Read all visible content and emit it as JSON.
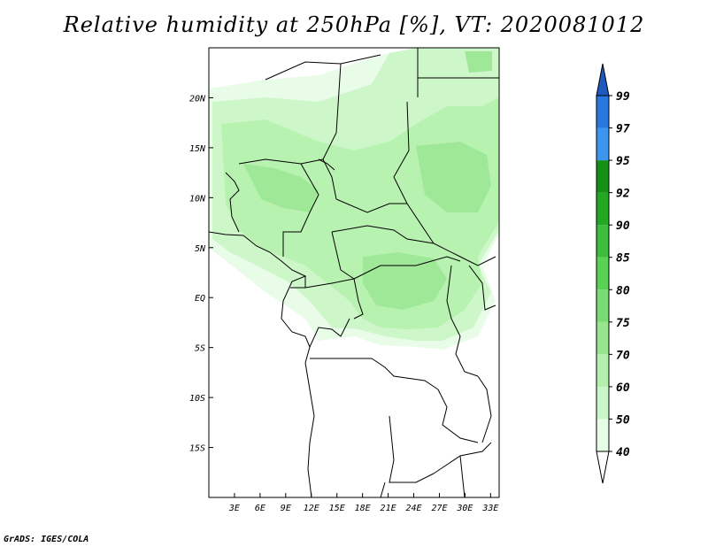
{
  "title": "Relative humidity at 250hPa [%], VT: 2020081012",
  "credit": "GrADS: IGES/COLA",
  "map": {
    "lon_range": [
      0,
      34
    ],
    "lat_range": [
      -20,
      25
    ],
    "lon_ticks": [
      {
        "value": 3,
        "label": "3E"
      },
      {
        "value": 6,
        "label": "6E"
      },
      {
        "value": 9,
        "label": "9E"
      },
      {
        "value": 12,
        "label": "12E"
      },
      {
        "value": 15,
        "label": "15E"
      },
      {
        "value": 18,
        "label": "18E"
      },
      {
        "value": 21,
        "label": "21E"
      },
      {
        "value": 24,
        "label": "24E"
      },
      {
        "value": 27,
        "label": "27E"
      },
      {
        "value": 30,
        "label": "30E"
      },
      {
        "value": 33,
        "label": "33E"
      }
    ],
    "lat_ticks": [
      {
        "value": 20,
        "label": "20N"
      },
      {
        "value": 15,
        "label": "15N"
      },
      {
        "value": 10,
        "label": "10N"
      },
      {
        "value": 5,
        "label": "5N"
      },
      {
        "value": 0,
        "label": "EQ"
      },
      {
        "value": -5,
        "label": "5S"
      },
      {
        "value": -10,
        "label": "10S"
      },
      {
        "value": -15,
        "label": "15S"
      }
    ],
    "field_colors": {
      "c40": "#e8fce8",
      "c50": "#cdf7c8",
      "c60": "#b8f2b0",
      "c70": "#9ee898"
    }
  },
  "colorbar": {
    "levels": [
      "40",
      "50",
      "60",
      "70",
      "75",
      "80",
      "85",
      "90",
      "92",
      "95",
      "97",
      "99"
    ],
    "colors": [
      "#ffffff",
      "#e6fde6",
      "#c8f6c8",
      "#b4efae",
      "#98e590",
      "#78dc72",
      "#58d155",
      "#3cbe3c",
      "#22a822",
      "#158f15",
      "#3c96f0",
      "#2878e0",
      "#1e5abe"
    ],
    "low_extend_color": "#ffffff",
    "high_extend_color": "#1e5abe"
  }
}
